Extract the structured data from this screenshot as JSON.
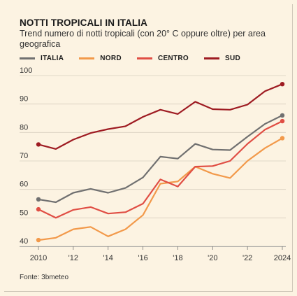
{
  "chart_data": {
    "type": "line",
    "title": "NOTTI TROPICALI IN ITALIA",
    "subtitle": "Trend numero di notti tropicali (con 20° C oppure oltre) per area geografica",
    "source": "Fonte: 3bmeteo",
    "x": [
      2010,
      2011,
      2012,
      2013,
      2014,
      2015,
      2016,
      2017,
      2018,
      2019,
      2020,
      2021,
      2022,
      2023,
      2024
    ],
    "xticks": [
      2010,
      2012,
      2014,
      2016,
      2018,
      2020,
      2022,
      2024
    ],
    "xtick_labels": [
      "2010",
      "'12",
      "'14",
      "'16",
      "'18",
      "'20",
      "'22",
      "2024"
    ],
    "ylim": [
      40,
      100
    ],
    "yticks": [
      40,
      50,
      60,
      70,
      80,
      90,
      100
    ],
    "grid": true,
    "legend_position": "top-left",
    "series": [
      {
        "name": "ITALIA",
        "color": "#707070",
        "values": [
          56.5,
          55.5,
          58.8,
          60.2,
          58.8,
          60.5,
          64.2,
          71.5,
          70.8,
          76.0,
          74.0,
          73.8,
          78.5,
          83.0,
          86.0
        ]
      },
      {
        "name": "NORD",
        "color": "#f2994a",
        "values": [
          42.2,
          43.0,
          46.0,
          46.8,
          43.5,
          46.0,
          51.0,
          62.0,
          62.8,
          68.0,
          65.5,
          64.0,
          70.0,
          74.5,
          78.0
        ]
      },
      {
        "name": "CENTRO",
        "color": "#e04e44",
        "values": [
          53.0,
          50.0,
          52.8,
          53.8,
          51.5,
          52.0,
          55.0,
          63.5,
          61.0,
          68.0,
          68.2,
          70.0,
          76.0,
          81.0,
          84.0
        ]
      },
      {
        "name": "SUD",
        "color": "#9e1b22",
        "values": [
          75.8,
          74.2,
          77.5,
          79.8,
          81.2,
          82.2,
          85.5,
          88.0,
          86.5,
          90.8,
          88.2,
          88.0,
          89.8,
          94.5,
          97.0
        ]
      }
    ]
  }
}
